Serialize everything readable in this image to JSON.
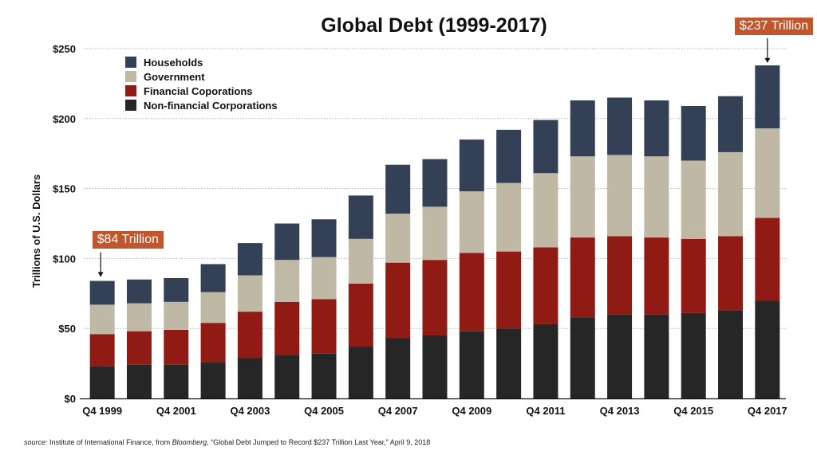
{
  "chart_data": {
    "type": "bar",
    "stacked": true,
    "title": "Global Debt (1999-2017)",
    "xlabel": "",
    "ylabel": "Trillions of U.S. Dollars",
    "ylim": [
      0,
      250
    ],
    "yticks": [
      0,
      50,
      100,
      150,
      200,
      250
    ],
    "ytick_labels": [
      "$0",
      "$50",
      "$100",
      "$150",
      "$200",
      "$250"
    ],
    "grid": "horizontal-dotted",
    "legend_position": "top-left",
    "categories": [
      "Q4 1999",
      "Q4 2000",
      "Q4 2001",
      "Q4 2002",
      "Q4 2003",
      "Q4 2004",
      "Q4 2005",
      "Q4 2006",
      "Q4 2007",
      "Q4 2008",
      "Q4 2009",
      "Q4 2010",
      "Q4 2011",
      "Q4 2012",
      "Q4 2013",
      "Q4 2014",
      "Q4 2015",
      "Q4 2016",
      "Q4 2017"
    ],
    "shown_tick_labels": [
      "Q4 1999",
      "Q4 2001",
      "Q4 2003",
      "Q4 2005",
      "Q4 2007",
      "Q4 2009",
      "Q4 2011",
      "Q4 2013",
      "Q4 2015",
      "Q4 2017"
    ],
    "series": [
      {
        "name": "Non-financial Corporations",
        "color": "#262626",
        "values": [
          23,
          24,
          24,
          26,
          29,
          31,
          32,
          37,
          43,
          45,
          48,
          50,
          53,
          58,
          60,
          60,
          61,
          63,
          70
        ]
      },
      {
        "name": "Financial Coporations",
        "color": "#8f1b14",
        "values": [
          23,
          24,
          25,
          28,
          33,
          38,
          39,
          45,
          54,
          54,
          56,
          55,
          55,
          57,
          56,
          55,
          53,
          53,
          59
        ]
      },
      {
        "name": "Government",
        "color": "#bfb8a4",
        "values": [
          21,
          20,
          20,
          22,
          26,
          30,
          30,
          32,
          35,
          38,
          44,
          49,
          53,
          58,
          58,
          58,
          56,
          60,
          64
        ]
      },
      {
        "name": "Households",
        "color": "#334056",
        "values": [
          17,
          17,
          17,
          20,
          23,
          26,
          27,
          31,
          35,
          34,
          37,
          38,
          38,
          40,
          41,
          40,
          39,
          40,
          45
        ]
      }
    ],
    "legend_order": [
      "Households",
      "Government",
      "Financial Coporations",
      "Non-financial Corporations"
    ],
    "annotations": [
      {
        "text": "$84 Trillion",
        "category": "Q4 1999",
        "value": 84
      },
      {
        "text": "$237 Trillion",
        "category": "Q4 2017",
        "value": 237
      }
    ]
  },
  "source": {
    "prefix": "source:",
    "text1": " Institute of International Finance, from ",
    "publication": "Bloomberg",
    "text2": ", “Global Debt Jumped to Record $237 Trillion Last Year,” April 9, 2018"
  },
  "colors": {
    "callout": "#c1562c",
    "grid": "#b0b0b0",
    "axis": "#111111"
  }
}
